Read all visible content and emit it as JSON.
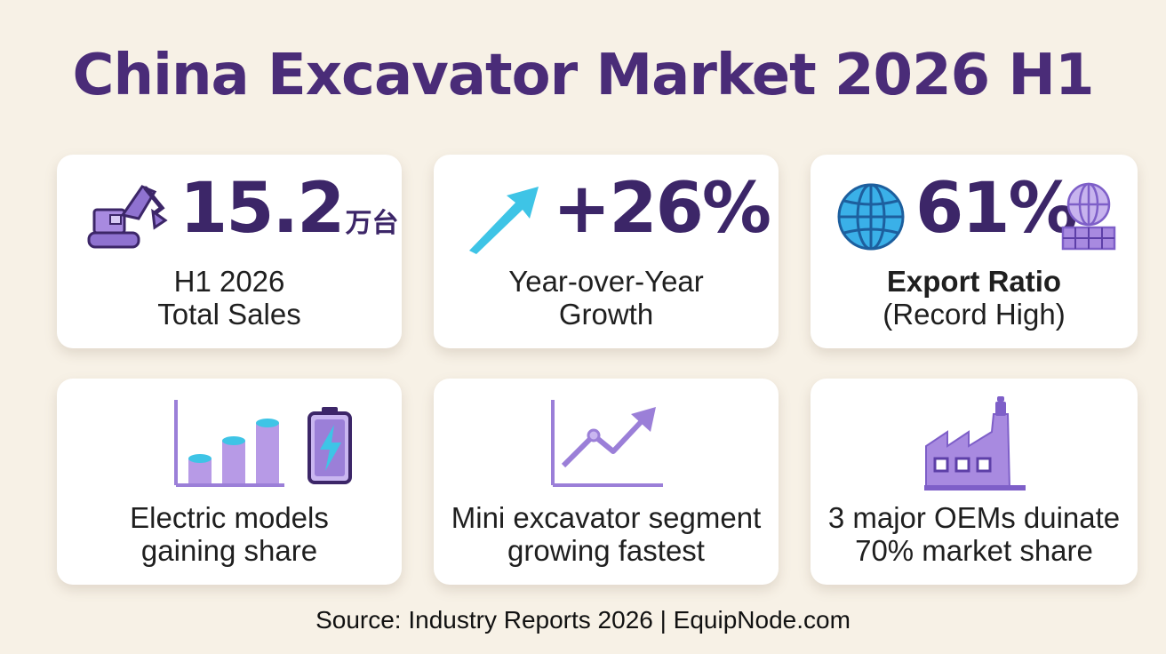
{
  "title": "China Excavator Market 2026 H1",
  "colors": {
    "title": "#4a2c78",
    "accent_purple": "#9b7fd8",
    "accent_cyan": "#3ec4e6",
    "background": "#f7f1e6"
  },
  "cards": [
    {
      "icon": "excavator-icon",
      "value": "15.2",
      "unit": "万台",
      "label_lines": [
        "H1 2026",
        "Total Sales"
      ]
    },
    {
      "icon": "arrow-up-right-icon",
      "value": "+26%",
      "label_lines": [
        "Year-over-Year",
        "Growth"
      ]
    },
    {
      "icon": "globe-icon",
      "icon2": "globe-on-container-icon",
      "value": "61%",
      "label_lines": [
        "Export Ratio",
        "(Record High)"
      ]
    },
    {
      "icon": "bar-chart-icon",
      "icon2": "battery-bolt-icon",
      "label_lines": [
        "Electric models",
        "gaining share"
      ]
    },
    {
      "icon": "line-chart-icon",
      "label_lines": [
        "Mini excavator segment",
        "growing fastest"
      ]
    },
    {
      "icon": "factory-icon",
      "label_lines": [
        "3 major OEMs duinate",
        "70% market share"
      ]
    }
  ],
  "source": "Source: Industry Reports 2026 | EquipNode.com"
}
